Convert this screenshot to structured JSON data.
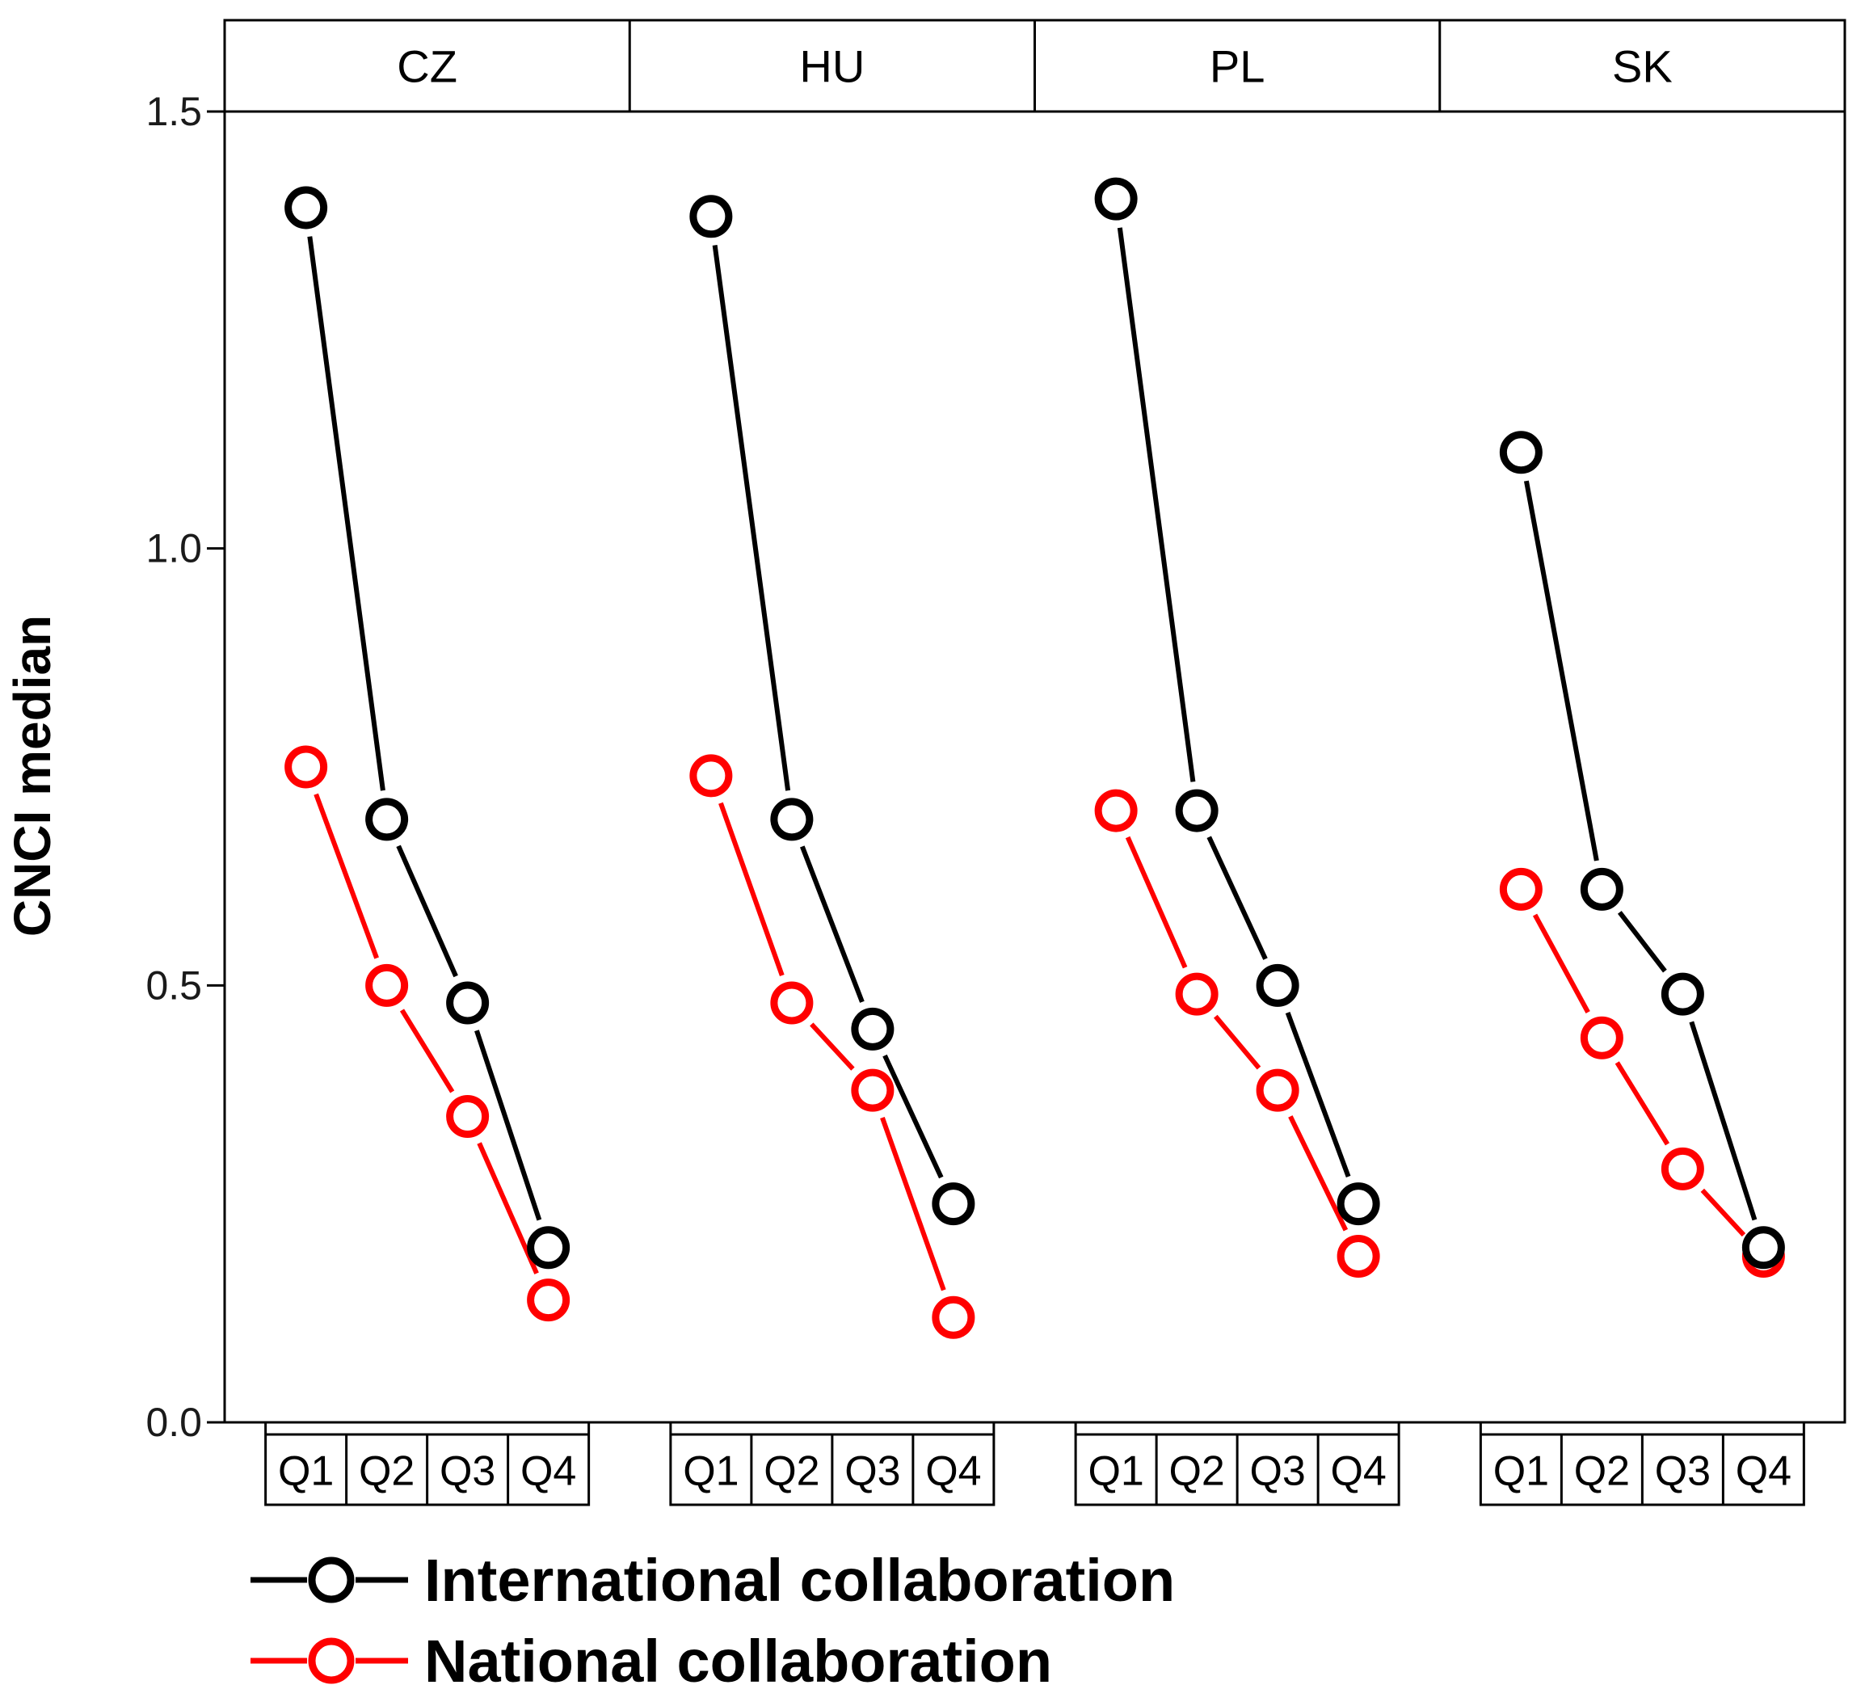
{
  "chart_data": {
    "type": "line",
    "ylabel": "CNCI median",
    "ylim": [
      0,
      1.5
    ],
    "yticks": [
      "0.0",
      "0.5",
      "1.0",
      "1.5"
    ],
    "panels": [
      {
        "label": "CZ",
        "categories": [
          "Q1",
          "Q2",
          "Q3",
          "Q4"
        ],
        "series": [
          {
            "name": "International collaboration",
            "values": [
              1.39,
              0.69,
              0.48,
              0.2
            ]
          },
          {
            "name": "National collaboration",
            "values": [
              0.75,
              0.5,
              0.35,
              0.14
            ]
          }
        ]
      },
      {
        "label": "HU",
        "categories": [
          "Q1",
          "Q2",
          "Q3",
          "Q4"
        ],
        "series": [
          {
            "name": "International collaboration",
            "values": [
              1.38,
              0.69,
              0.45,
              0.25
            ]
          },
          {
            "name": "National collaboration",
            "values": [
              0.74,
              0.48,
              0.38,
              0.12
            ]
          }
        ]
      },
      {
        "label": "PL",
        "categories": [
          "Q1",
          "Q2",
          "Q3",
          "Q4"
        ],
        "series": [
          {
            "name": "International collaboration",
            "values": [
              1.4,
              0.7,
              0.5,
              0.25
            ]
          },
          {
            "name": "National collaboration",
            "values": [
              0.7,
              0.49,
              0.38,
              0.19
            ]
          }
        ]
      },
      {
        "label": "SK",
        "categories": [
          "Q1",
          "Q2",
          "Q3",
          "Q4"
        ],
        "series": [
          {
            "name": "International collaboration",
            "values": [
              1.11,
              0.61,
              0.49,
              0.2
            ]
          },
          {
            "name": "National collaboration",
            "values": [
              0.61,
              0.44,
              0.29,
              0.19
            ]
          }
        ]
      }
    ],
    "legend": {
      "position": "bottom-left",
      "entries": [
        {
          "label": "International collaboration",
          "color": "#000000"
        },
        {
          "label": "National collaboration",
          "color": "#ff0000"
        }
      ]
    },
    "colors": {
      "international": "#000000",
      "national": "#ff0000"
    }
  }
}
